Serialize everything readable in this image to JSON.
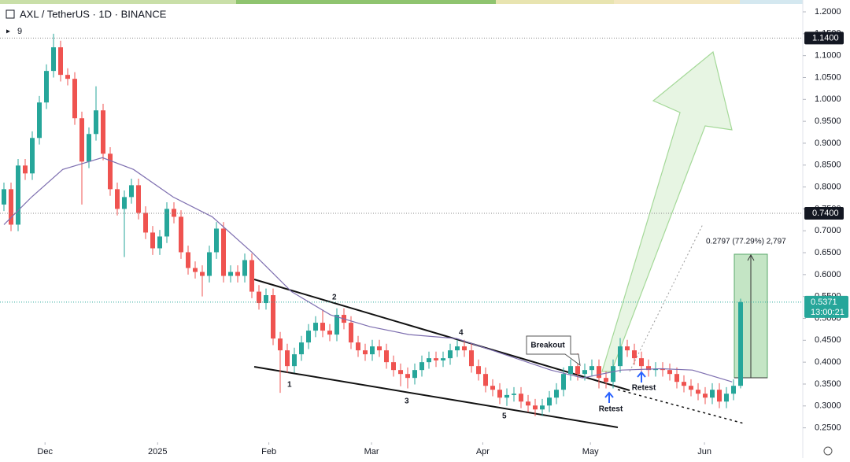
{
  "chart_data": {
    "type": "candlestick",
    "title": "AXL / TetherUS · 1D · BINANCE",
    "indicator_label": "9",
    "up_color": "#26a69a",
    "down_color": "#ef5350",
    "ma_color": "#7e6fb0",
    "grid": false,
    "ylim": [
      0.181,
      1.227
    ],
    "yticks": [
      {
        "value": 0.25,
        "label": "0.2500"
      },
      {
        "value": 0.3,
        "label": "0.3000"
      },
      {
        "value": 0.35,
        "label": "0.3500"
      },
      {
        "value": 0.4,
        "label": "0.4000"
      },
      {
        "value": 0.45,
        "label": "0.4500"
      },
      {
        "value": 0.5,
        "label": "0.5000"
      },
      {
        "value": 0.55,
        "label": "0.5500"
      },
      {
        "value": 0.6,
        "label": "0.6000"
      },
      {
        "value": 0.65,
        "label": "0.6500"
      },
      {
        "value": 0.7,
        "label": "0.7000"
      },
      {
        "value": 0.75,
        "label": "0.7500"
      },
      {
        "value": 0.8,
        "label": "0.8000"
      },
      {
        "value": 0.85,
        "label": "0.8500"
      },
      {
        "value": 0.9,
        "label": "0.9000"
      },
      {
        "value": 0.95,
        "label": "0.9500"
      },
      {
        "value": 1.0,
        "label": "1.0000"
      },
      {
        "value": 1.05,
        "label": "1.0500"
      },
      {
        "value": 1.1,
        "label": "1.1000"
      },
      {
        "value": 1.15,
        "label": "1.1500"
      },
      {
        "value": 1.2,
        "label": "1.2000"
      }
    ],
    "xticks": [
      {
        "value": 5.8,
        "label": "Dec"
      },
      {
        "value": 21.7,
        "label": "2025"
      },
      {
        "value": 37.4,
        "label": "Feb"
      },
      {
        "value": 51.9,
        "label": "Mar"
      },
      {
        "value": 67.6,
        "label": "Apr"
      },
      {
        "value": 82.8,
        "label": "May"
      },
      {
        "value": 98.9,
        "label": "Jun"
      }
    ],
    "open": [
      0.76,
      0.795,
      0.714,
      0.849,
      0.831,
      0.912,
      0.993,
      1.065,
      1.119,
      1.056,
      1.047,
      0.957,
      0.858,
      0.921,
      0.975,
      0.876,
      0.795,
      0.75,
      0.777,
      0.804,
      0.741,
      0.696,
      0.66,
      0.687,
      0.75,
      0.732,
      0.651,
      0.615,
      0.606,
      0.597,
      0.651,
      0.705,
      0.597,
      0.606,
      0.597,
      0.633,
      0.561,
      0.535,
      0.553,
      0.454,
      0.427,
      0.391,
      0.418,
      0.445,
      0.472,
      0.49,
      0.472,
      0.463,
      0.508,
      0.49,
      0.445,
      0.427,
      0.418,
      0.436,
      0.427,
      0.4,
      0.382,
      0.373,
      0.364,
      0.382,
      0.4,
      0.409,
      0.404,
      0.409,
      0.427,
      0.436,
      0.427,
      0.391,
      0.373,
      0.346,
      0.337,
      0.319,
      0.325,
      0.328,
      0.31,
      0.301,
      0.292,
      0.301,
      0.319,
      0.337,
      0.373,
      0.391,
      0.373,
      0.382,
      0.391,
      0.364,
      0.355,
      0.391,
      0.436,
      0.427,
      0.409,
      0.391,
      0.382,
      0.385,
      0.382,
      0.373,
      0.355,
      0.346,
      0.337,
      0.328,
      0.319,
      0.337,
      0.31,
      0.328,
      0.346
    ],
    "high": [
      0.81,
      0.81,
      0.864,
      0.864,
      0.927,
      1.008,
      1.08,
      1.15,
      1.134,
      1.071,
      1.062,
      0.972,
      0.936,
      1.03,
      0.99,
      0.891,
      0.81,
      0.792,
      0.819,
      0.819,
      0.756,
      0.711,
      0.702,
      0.765,
      0.765,
      0.747,
      0.666,
      0.63,
      0.621,
      0.666,
      0.72,
      0.72,
      0.621,
      0.621,
      0.648,
      0.648,
      0.576,
      0.568,
      0.568,
      0.469,
      0.442,
      0.433,
      0.46,
      0.487,
      0.505,
      0.52,
      0.487,
      0.523,
      0.523,
      0.505,
      0.46,
      0.442,
      0.451,
      0.451,
      0.442,
      0.415,
      0.397,
      0.388,
      0.397,
      0.415,
      0.424,
      0.424,
      0.424,
      0.442,
      0.451,
      0.451,
      0.442,
      0.406,
      0.388,
      0.361,
      0.352,
      0.34,
      0.343,
      0.343,
      0.325,
      0.316,
      0.316,
      0.334,
      0.352,
      0.388,
      0.406,
      0.42,
      0.397,
      0.406,
      0.406,
      0.379,
      0.406,
      0.455,
      0.451,
      0.442,
      0.424,
      0.406,
      0.4,
      0.4,
      0.397,
      0.388,
      0.37,
      0.361,
      0.352,
      0.343,
      0.352,
      0.352,
      0.343,
      0.361,
      0.545
    ],
    "low": [
      0.745,
      0.699,
      0.699,
      0.816,
      0.816,
      0.897,
      0.978,
      1.05,
      1.041,
      1.032,
      0.942,
      0.76,
      0.843,
      0.906,
      0.861,
      0.78,
      0.735,
      0.64,
      0.762,
      0.726,
      0.681,
      0.645,
      0.645,
      0.672,
      0.717,
      0.636,
      0.6,
      0.591,
      0.55,
      0.582,
      0.636,
      0.582,
      0.582,
      0.582,
      0.582,
      0.546,
      0.52,
      0.52,
      0.439,
      0.33,
      0.376,
      0.376,
      0.403,
      0.43,
      0.457,
      0.457,
      0.448,
      0.448,
      0.475,
      0.43,
      0.412,
      0.403,
      0.403,
      0.412,
      0.385,
      0.367,
      0.345,
      0.34,
      0.349,
      0.367,
      0.385,
      0.389,
      0.389,
      0.394,
      0.412,
      0.412,
      0.376,
      0.358,
      0.331,
      0.322,
      0.304,
      0.3,
      0.31,
      0.295,
      0.286,
      0.277,
      0.277,
      0.286,
      0.304,
      0.322,
      0.358,
      0.358,
      0.358,
      0.367,
      0.34,
      0.34,
      0.34,
      0.376,
      0.412,
      0.394,
      0.376,
      0.367,
      0.367,
      0.367,
      0.358,
      0.34,
      0.331,
      0.322,
      0.313,
      0.304,
      0.304,
      0.295,
      0.295,
      0.313,
      0.34
    ],
    "close": [
      0.795,
      0.714,
      0.849,
      0.831,
      0.912,
      0.993,
      1.065,
      1.119,
      1.056,
      1.047,
      0.957,
      0.858,
      0.921,
      0.975,
      0.876,
      0.795,
      0.75,
      0.777,
      0.804,
      0.741,
      0.696,
      0.66,
      0.687,
      0.75,
      0.732,
      0.651,
      0.615,
      0.606,
      0.597,
      0.651,
      0.705,
      0.597,
      0.606,
      0.597,
      0.633,
      0.561,
      0.535,
      0.553,
      0.454,
      0.427,
      0.391,
      0.418,
      0.445,
      0.472,
      0.49,
      0.472,
      0.463,
      0.508,
      0.49,
      0.445,
      0.427,
      0.418,
      0.436,
      0.427,
      0.4,
      0.382,
      0.373,
      0.364,
      0.382,
      0.4,
      0.409,
      0.404,
      0.409,
      0.427,
      0.436,
      0.427,
      0.391,
      0.373,
      0.346,
      0.337,
      0.319,
      0.325,
      0.328,
      0.31,
      0.301,
      0.292,
      0.301,
      0.319,
      0.337,
      0.373,
      0.391,
      0.373,
      0.382,
      0.391,
      0.364,
      0.355,
      0.391,
      0.436,
      0.427,
      0.409,
      0.391,
      0.382,
      0.385,
      0.382,
      0.373,
      0.355,
      0.346,
      0.337,
      0.328,
      0.319,
      0.337,
      0.31,
      0.328,
      0.346,
      0.5371
    ],
    "ma": {
      "x": [
        0,
        3.9,
        8.3,
        13.9,
        18.3,
        23.9,
        29.4,
        35,
        40.6,
        46.1,
        51.7,
        57.2,
        63.9,
        70.6,
        77.2,
        81.7,
        87.2,
        92.8,
        97.2,
        102.8
      ],
      "values": [
        0.714,
        0.777,
        0.84,
        0.867,
        0.84,
        0.777,
        0.732,
        0.651,
        0.561,
        0.508,
        0.481,
        0.463,
        0.454,
        0.418,
        0.382,
        0.364,
        0.382,
        0.385,
        0.382,
        0.355
      ]
    },
    "price_lines": [
      {
        "value": 1.14,
        "label": "1.1400"
      },
      {
        "value": 0.74,
        "label": "0.7400"
      }
    ],
    "last_price": {
      "value": 0.5371,
      "countdown": "13:00:21"
    },
    "annotations": [
      "1",
      "2",
      "3",
      "4",
      "5",
      "Breakout",
      "Retest",
      "Retest",
      "0.2797 (77.29%) 2,797"
    ]
  }
}
